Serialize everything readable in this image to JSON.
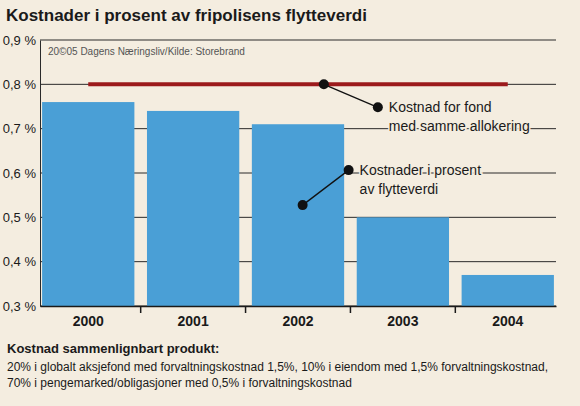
{
  "chart_data": {
    "type": "bar",
    "title": "Kostnader i prosent av fripolisens flytteverdi",
    "source": "20©05 Dagens Næringsliv/Kilde: Storebrand",
    "categories": [
      "2000",
      "2001",
      "2002",
      "2003",
      "2004"
    ],
    "series": [
      {
        "name": "Kostnader i prosent av flytteverdi",
        "type": "bar",
        "color": "#4a9fd6",
        "values": [
          0.76,
          0.74,
          0.71,
          0.5,
          0.37
        ]
      },
      {
        "name": "Kostnad for fond med samme allokering",
        "type": "line",
        "color": "#9c1a1c",
        "values": [
          0.8,
          0.8,
          0.8,
          0.8,
          0.8
        ]
      }
    ],
    "ylim": [
      0.3,
      0.9
    ],
    "yticks": [
      {
        "value": 0.3,
        "label": "0,3 %"
      },
      {
        "value": 0.4,
        "label": "0,4 %"
      },
      {
        "value": 0.5,
        "label": "0,5 %"
      },
      {
        "value": 0.6,
        "label": "0,6 %"
      },
      {
        "value": 0.7,
        "label": "0,7 %"
      },
      {
        "value": 0.8,
        "label": "0,8 %"
      },
      {
        "value": 0.9,
        "label": "0,9 %"
      }
    ],
    "grid": true,
    "note_title": "Kostnad sammenlignbart produkt:",
    "note": "20% i globalt aksjefond med forvaltningskostnad 1,5%, 10% i eiendom med 1,5% forvaltningskostnad, 70% i pengemarked/obligasjoner med 0,5% i forvaltningskostnad"
  }
}
